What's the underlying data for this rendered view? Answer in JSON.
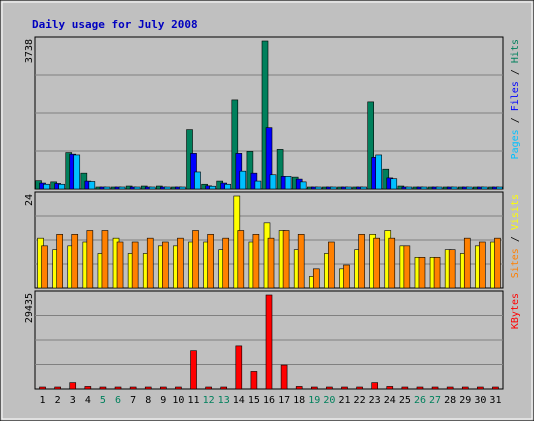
{
  "chart_data": {
    "type": "bar",
    "title": "Daily usage for July 2008",
    "days": [
      "1",
      "2",
      "3",
      "4",
      "5",
      "6",
      "7",
      "8",
      "9",
      "10",
      "11",
      "12",
      "13",
      "14",
      "15",
      "16",
      "17",
      "18",
      "19",
      "20",
      "21",
      "22",
      "23",
      "24",
      "25",
      "26",
      "27",
      "28",
      "29",
      "30",
      "31"
    ],
    "weekend_days": [
      "5",
      "6",
      "12",
      "13",
      "19",
      "20",
      "26",
      "27"
    ],
    "panels": [
      {
        "id": "hits",
        "max_label": "3738",
        "ylim": [
          0,
          3738
        ],
        "series": [
          {
            "name": "Hits",
            "color": "#00805c",
            "values": [
              210,
              180,
              920,
              400,
              30,
              30,
              75,
              75,
              75,
              30,
              1500,
              120,
              200,
              2250,
              950,
              3738,
              1000,
              300,
              30,
              30,
              30,
              30,
              2200,
              500,
              75,
              30,
              30,
              30,
              30,
              30,
              30
            ]
          },
          {
            "name": "Files",
            "color": "#0000ff",
            "values": [
              150,
              140,
              880,
              200,
              0,
              0,
              50,
              50,
              50,
              0,
              900,
              80,
              150,
              900,
              400,
              1550,
              320,
              250,
              0,
              0,
              0,
              0,
              800,
              280,
              30,
              0,
              0,
              0,
              0,
              0,
              0
            ]
          },
          {
            "name": "Pages",
            "color": "#00c0ff",
            "values": [
              120,
              120,
              860,
              190,
              0,
              0,
              40,
              40,
              40,
              0,
              430,
              70,
              120,
              450,
              200,
              360,
              320,
              180,
              0,
              0,
              0,
              0,
              860,
              260,
              30,
              0,
              0,
              0,
              0,
              0,
              0
            ]
          }
        ],
        "side_label": [
          {
            "text": "Pages",
            "color": "#00c0ff"
          },
          {
            "text": " / ",
            "color": "#000000"
          },
          {
            "text": "Files",
            "color": "#0000ff"
          },
          {
            "text": " / ",
            "color": "#000000"
          },
          {
            "text": "Hits",
            "color": "#00805c"
          }
        ]
      },
      {
        "id": "visits",
        "max_label": "24",
        "ylim": [
          0,
          24
        ],
        "series": [
          {
            "name": "Visits",
            "color": "#ffff00",
            "values": [
              13,
              10,
              11,
              12,
              9,
              13,
              9,
              9,
              11,
              11,
              12,
              12,
              10,
              24,
              12,
              17,
              15,
              10,
              3,
              9,
              5,
              10,
              14,
              15,
              11,
              8,
              8,
              10,
              9,
              11,
              12
            ]
          },
          {
            "name": "Sites",
            "color": "#ff8000",
            "values": [
              11,
              14,
              14,
              15,
              15,
              12,
              12,
              13,
              12,
              13,
              15,
              14,
              13,
              15,
              14,
              13,
              15,
              14,
              5,
              12,
              6,
              14,
              13,
              13,
              11,
              8,
              8,
              10,
              13,
              12,
              13
            ]
          }
        ],
        "side_label": [
          {
            "text": "Sites",
            "color": "#ff8000"
          },
          {
            "text": " / ",
            "color": "#000000"
          },
          {
            "text": "Visits",
            "color": "#ffff00"
          }
        ]
      },
      {
        "id": "kbytes",
        "max_label": "29435",
        "ylim": [
          0,
          29435
        ],
        "series": [
          {
            "name": "KBytes",
            "color": "#ff0000",
            "values": [
              300,
              300,
              2000,
              800,
              300,
              300,
              300,
              300,
              300,
              300,
              12000,
              300,
              300,
              13500,
              5500,
              29435,
              7500,
              800,
              300,
              300,
              300,
              300,
              2000,
              800,
              300,
              300,
              300,
              300,
              300,
              300,
              300
            ]
          }
        ],
        "side_label": [
          {
            "text": "KBytes",
            "color": "#ff0000"
          }
        ]
      }
    ]
  }
}
